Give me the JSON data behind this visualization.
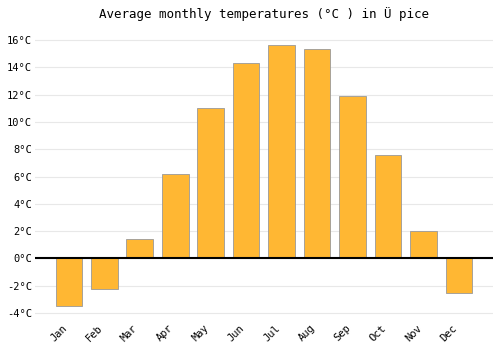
{
  "title": "Average monthly temperatures (°C ) in Ü pice",
  "months": [
    "Jan",
    "Feb",
    "Mar",
    "Apr",
    "May",
    "Jun",
    "Jul",
    "Aug",
    "Sep",
    "Oct",
    "Nov",
    "Dec"
  ],
  "temperatures": [
    -3.5,
    -2.2,
    1.4,
    6.2,
    11.0,
    14.3,
    15.6,
    15.3,
    11.9,
    7.6,
    2.0,
    -2.5
  ],
  "bar_color_top": "#FFB733",
  "bar_color_bottom": "#FF8C00",
  "bar_edge_color": "#999999",
  "ylim": [
    -4.5,
    17.0
  ],
  "yticks": [
    -4,
    -2,
    0,
    2,
    4,
    6,
    8,
    10,
    12,
    14,
    16
  ],
  "ytick_labels": [
    "-4°C",
    "-2°C",
    "0°C",
    "2°C",
    "4°C",
    "6°C",
    "8°C",
    "10°C",
    "12°C",
    "14°C",
    "16°C"
  ],
  "background_color": "#ffffff",
  "plot_bg_color": "#ffffff",
  "grid_color": "#e0e0e0",
  "title_fontsize": 9,
  "tick_fontsize": 7.5,
  "zero_line_color": "#000000",
  "bar_width": 0.75
}
